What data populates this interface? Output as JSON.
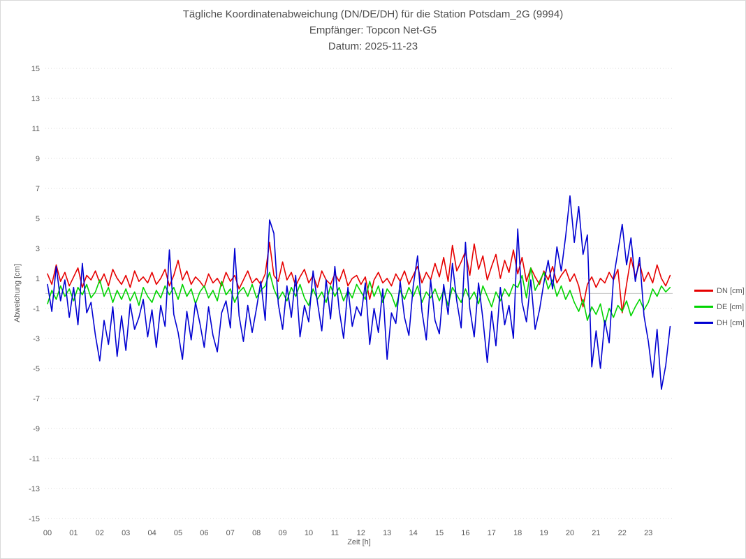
{
  "header": {
    "title": "Tägliche Koordinatenabweichung (DN/DE/DH) für die Station Potsdam_2G (9994)",
    "receiver": "Empfänger: Topcon Net-G5",
    "date": "Datum: 2025-11-23"
  },
  "axes": {
    "y_label": "Abweichung [cm]",
    "x_label": "Zeit [h]"
  },
  "colors": {
    "grid": "#d9d9d9",
    "zero_line": "#c6c6c6",
    "text": "#595959",
    "title_text": "#4d4d4d"
  },
  "chart_data": {
    "type": "line",
    "title": "Tägliche Koordinatenabweichung (DN/DE/DH) für die Station Potsdam_2G (9994)",
    "subtitle1": "Empfänger: Topcon Net-G5",
    "subtitle2": "Datum: 2025-11-23",
    "xlabel": "Zeit [h]",
    "ylabel": "Abweichung [cm]",
    "xlim": [
      0,
      24
    ],
    "ylim": [
      -15,
      15
    ],
    "grid": "horizontal-dotted",
    "legend_position": "right",
    "x_start_hours": 0,
    "x_step_hours": 0.166667,
    "yticks": [
      15,
      13,
      11,
      9,
      7,
      5,
      3,
      1,
      -1,
      -3,
      -5,
      -7,
      -9,
      -11,
      -13,
      -15
    ],
    "xtick_labels": [
      "00",
      "01",
      "02",
      "03",
      "04",
      "05",
      "06",
      "07",
      "08",
      "09",
      "10",
      "11",
      "12",
      "13",
      "14",
      "15",
      "16",
      "17",
      "18",
      "19",
      "20",
      "21",
      "22",
      "23"
    ],
    "series": [
      {
        "name": "DN [cm]",
        "color": "#e60000",
        "values": [
          1.3,
          0.6,
          1.9,
          0.8,
          1.4,
          0.5,
          1.1,
          1.7,
          0.4,
          1.2,
          0.9,
          1.5,
          0.7,
          1.3,
          0.5,
          1.6,
          1.0,
          0.6,
          1.2,
          0.4,
          1.5,
          0.8,
          1.1,
          0.7,
          1.4,
          0.6,
          1.0,
          1.6,
          0.5,
          1.2,
          2.2,
          0.9,
          1.5,
          0.6,
          1.1,
          0.8,
          0.4,
          1.3,
          0.7,
          1.0,
          0.5,
          1.4,
          0.8,
          1.2,
          0.3,
          0.9,
          1.5,
          0.7,
          1.0,
          0.6,
          1.3,
          3.4,
          1.2,
          0.8,
          2.1,
          0.9,
          1.4,
          0.5,
          1.1,
          1.6,
          0.7,
          1.2,
          0.4,
          1.5,
          0.9,
          0.6,
          1.3,
          0.8,
          1.6,
          0.5,
          1.0,
          1.2,
          0.6,
          1.1,
          -0.4,
          0.9,
          1.4,
          0.7,
          1.0,
          0.5,
          1.3,
          0.8,
          1.5,
          0.6,
          1.2,
          1.8,
          0.7,
          1.4,
          0.9,
          2.0,
          1.1,
          2.4,
          0.8,
          3.2,
          1.5,
          2.1,
          2.8,
          1.2,
          3.3,
          1.6,
          2.5,
          0.9,
          1.8,
          2.6,
          1.0,
          2.2,
          1.4,
          2.9,
          1.3,
          2.4,
          0.8,
          1.7,
          1.1,
          0.6,
          1.5,
          0.9,
          1.8,
          0.7,
          1.2,
          1.6,
          0.8,
          1.3,
          0.5,
          -0.9,
          0.6,
          1.1,
          0.4,
          1.0,
          0.7,
          1.4,
          0.9,
          1.6,
          -1.3,
          0.6,
          2.4,
          1.1,
          2.0,
          0.8,
          1.4,
          0.7,
          1.9,
          1.0,
          0.5,
          1.2
        ]
      },
      {
        "name": "DE [cm]",
        "color": "#00d400",
        "values": [
          -0.7,
          0.2,
          -0.4,
          0.5,
          -0.2,
          0.3,
          -0.5,
          0.4,
          -0.1,
          0.6,
          -0.3,
          0.1,
          0.9,
          -0.2,
          0.4,
          -0.6,
          0.2,
          -0.4,
          0.3,
          -0.5,
          0.1,
          -0.8,
          0.4,
          -0.2,
          -0.6,
          0.2,
          -0.3,
          0.5,
          -0.1,
          0.4,
          -0.4,
          0.6,
          -0.2,
          0.3,
          -0.7,
          0.1,
          0.5,
          -0.3,
          0.2,
          -0.5,
          0.8,
          -0.1,
          0.3,
          -0.6,
          0.1,
          0.4,
          -0.2,
          0.6,
          -0.3,
          0.2,
          0.5,
          1.4,
          0.3,
          -0.4,
          0.1,
          -0.5,
          0.4,
          -0.2,
          0.6,
          -0.3,
          -0.8,
          0.3,
          -0.4,
          0.1,
          -0.6,
          0.5,
          -0.2,
          0.4,
          -0.5,
          0.2,
          -0.3,
          0.6,
          0.1,
          -0.4,
          0.8,
          -0.2,
          0.5,
          -0.6,
          0.3,
          -0.1,
          -0.9,
          0.2,
          -0.4,
          0.4,
          -0.2,
          0.5,
          -0.6,
          0.1,
          -0.3,
          0.3,
          -0.5,
          0.2,
          -0.8,
          0.4,
          -0.1,
          -0.6,
          0.3,
          -0.4,
          0.1,
          -0.7,
          0.5,
          -0.2,
          -0.9,
          0.1,
          -0.5,
          0.3,
          -0.2,
          0.6,
          0.4,
          1.2,
          -0.3,
          1.7,
          0.2,
          0.8,
          1.4,
          0.3,
          0.9,
          -0.2,
          0.5,
          -0.4,
          0.2,
          -0.6,
          -1.2,
          -0.4,
          -1.8,
          -0.9,
          -1.4,
          -0.7,
          -2.1,
          -1.0,
          -1.6,
          -0.8,
          -1.2,
          -0.5,
          -1.5,
          -0.9,
          -0.4,
          -1.1,
          -0.6,
          0.3,
          -0.2,
          0.5,
          0.1,
          0.4
        ]
      },
      {
        "name": "DH [cm]",
        "color": "#0000d2",
        "values": [
          0.6,
          -1.2,
          1.8,
          -0.5,
          0.9,
          -1.6,
          0.4,
          -2.1,
          2.0,
          -1.3,
          -0.6,
          -2.8,
          -4.5,
          -1.8,
          -3.4,
          -0.9,
          -4.2,
          -1.5,
          -3.8,
          -0.7,
          -2.4,
          -1.6,
          -0.4,
          -2.9,
          -1.1,
          -3.6,
          -0.8,
          -2.2,
          2.9,
          -1.4,
          -2.6,
          -4.4,
          -1.2,
          -3.1,
          -0.6,
          -2.0,
          -3.6,
          -0.9,
          -2.8,
          -3.9,
          -1.3,
          -0.5,
          -2.3,
          3.0,
          -1.5,
          -3.2,
          -0.8,
          -2.6,
          -1.0,
          0.8,
          -1.8,
          4.9,
          4.0,
          -0.7,
          -2.4,
          0.5,
          -1.6,
          1.2,
          -2.9,
          -0.8,
          -1.9,
          1.5,
          -0.6,
          -2.5,
          0.9,
          -1.7,
          1.8,
          -1.1,
          -3.0,
          0.4,
          -2.2,
          -0.9,
          -1.5,
          0.7,
          -3.4,
          -1.0,
          -2.6,
          0.3,
          -4.4,
          -1.3,
          -2.0,
          0.8,
          -1.6,
          -2.8,
          0.5,
          2.5,
          -1.2,
          -3.1,
          0.9,
          -1.8,
          -2.7,
          0.6,
          -1.4,
          2.0,
          -0.5,
          -2.3,
          3.4,
          -1.0,
          -2.9,
          0.7,
          -1.7,
          -4.6,
          -1.2,
          -3.5,
          0.4,
          -2.1,
          -0.8,
          -3.0,
          4.3,
          -0.6,
          -1.9,
          0.9,
          -2.4,
          -1.1,
          0.7,
          2.2,
          0.3,
          3.1,
          1.5,
          3.8,
          6.5,
          3.4,
          5.8,
          2.6,
          3.9,
          -4.9,
          -2.5,
          -5.0,
          -1.8,
          -3.3,
          1.0,
          2.8,
          4.6,
          1.9,
          3.7,
          0.8,
          2.4,
          -1.5,
          -3.2,
          -5.6,
          -2.4,
          -6.4,
          -4.8,
          -2.2
        ]
      }
    ]
  }
}
